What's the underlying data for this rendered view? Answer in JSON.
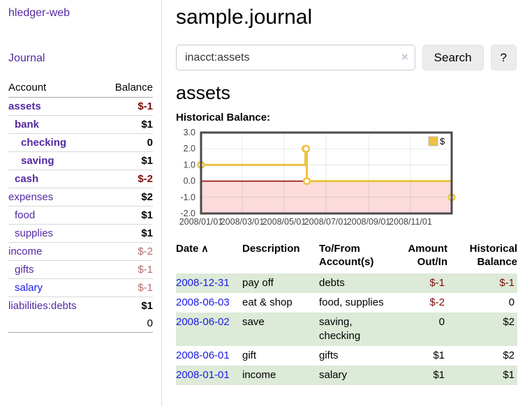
{
  "app": {
    "brand": "hledger-web"
  },
  "sidebar": {
    "journal_link": "Journal",
    "accounts": {
      "header_account": "Account",
      "header_balance": "Balance",
      "rows": [
        {
          "name": "assets",
          "balance": "$-1",
          "depth": 0,
          "emph": true,
          "neg": true
        },
        {
          "name": "bank",
          "balance": "$1",
          "depth": 1,
          "emph": true,
          "neg": false
        },
        {
          "name": "checking",
          "balance": "0",
          "depth": 2,
          "emph": true,
          "neg": false
        },
        {
          "name": "saving",
          "balance": "$1",
          "depth": 2,
          "emph": true,
          "neg": false
        },
        {
          "name": "cash",
          "balance": "$-2",
          "depth": 1,
          "emph": true,
          "neg": true
        },
        {
          "name": "expenses",
          "balance": "$2",
          "depth": 0,
          "emph": false,
          "neg": false
        },
        {
          "name": "food",
          "balance": "$1",
          "depth": 1,
          "emph": false,
          "neg": false
        },
        {
          "name": "supplies",
          "balance": "$1",
          "depth": 1,
          "emph": false,
          "neg": false
        },
        {
          "name": "income",
          "balance": "$-2",
          "depth": 0,
          "emph": false,
          "neg": true
        },
        {
          "name": "gifts",
          "balance": "$-1",
          "depth": 1,
          "emph": false,
          "neg": true
        },
        {
          "name": "salary",
          "balance": "$-1",
          "depth": 1,
          "emph": false,
          "neg": true,
          "link": "unvisited"
        },
        {
          "name": "liabilities:debts",
          "balance": "$1",
          "depth": 0,
          "emph": false,
          "neg": false
        }
      ],
      "total": "0"
    }
  },
  "main": {
    "title": "sample.journal",
    "search": {
      "value": "inacct:assets",
      "clear_icon": "×",
      "search_button": "Search",
      "help_button": "?"
    },
    "heading": "assets",
    "chart_title": "Historical Balance:",
    "register": {
      "headers": [
        {
          "line1": "Date",
          "sort": "∧",
          "align": "left"
        },
        {
          "line1": "Description",
          "align": "left"
        },
        {
          "line1": "To/From",
          "line2": "Account(s)",
          "align": "left"
        },
        {
          "line1": "Amount",
          "line2": "Out/In",
          "align": "right"
        },
        {
          "line1": "Historical",
          "line2": "Balance",
          "align": "right"
        }
      ],
      "rows": [
        {
          "date": "2008-12-31",
          "description": "pay off",
          "accounts": "debts",
          "amount": "$-1",
          "amount_negative": true,
          "balance": "$-1",
          "balance_negative": true
        },
        {
          "date": "2008-06-03",
          "description": "eat & shop",
          "accounts": "food, supplies",
          "amount": "$-2",
          "amount_negative": true,
          "balance": "0",
          "balance_negative": false
        },
        {
          "date": "2008-06-02",
          "description": "save",
          "accounts": "saving, checking",
          "amount": "0",
          "amount_negative": false,
          "balance": "$2",
          "balance_negative": false
        },
        {
          "date": "2008-06-01",
          "description": "gift",
          "accounts": "gifts",
          "amount": "$1",
          "amount_negative": false,
          "balance": "$2",
          "balance_negative": false
        },
        {
          "date": "2008-01-01",
          "description": "income",
          "accounts": "salary",
          "amount": "$1",
          "amount_negative": false,
          "balance": "$1",
          "balance_negative": false
        }
      ]
    }
  },
  "chart_data": {
    "type": "line",
    "title": "Historical Balance:",
    "series": [
      {
        "name": "$",
        "style": "steps",
        "points": [
          [
            "2008-01-01",
            1
          ],
          [
            "2008-06-01",
            2
          ],
          [
            "2008-06-02",
            2
          ],
          [
            "2008-06-03",
            0
          ],
          [
            "2008-12-31",
            -1
          ]
        ]
      }
    ],
    "x_range": [
      "2008-01-01",
      "2008-12-31"
    ],
    "ylim": [
      -2,
      3
    ],
    "yticks": [
      3,
      2,
      1,
      0,
      -1,
      -2
    ],
    "ytick_labels": [
      "3.0",
      "2.0",
      "1.0",
      "0.0",
      "-1.0",
      "-2.0"
    ],
    "xticks": [
      "2008-01-01",
      "2008-03-01",
      "2008-05-01",
      "2008-07-01",
      "2008-09-01",
      "2008-11-01"
    ],
    "xtick_labels": [
      "2008/01/01",
      "2008/03/01",
      "2008/05/01",
      "2008/07/01",
      "2008/09/01",
      "2008/11/01"
    ],
    "legend": {
      "position": "top-right",
      "entries": [
        {
          "label": "$",
          "color": "#edc240"
        }
      ]
    },
    "grid": true,
    "colors": {
      "line": "#edc240",
      "marker_fill": "#ffffff",
      "negative_region": "#fbdbdb",
      "zero_line": "#8b0000",
      "border": "#4a4a4a"
    }
  }
}
